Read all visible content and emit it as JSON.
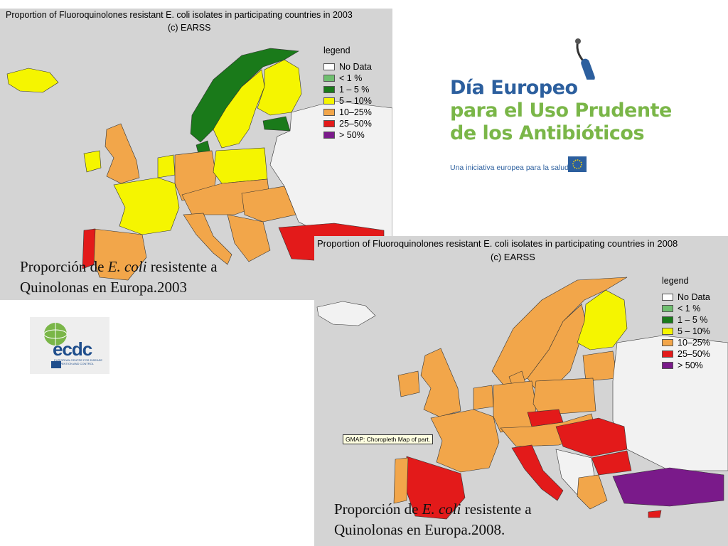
{
  "colors": {
    "no_data": "#e6e6e6",
    "lt1": "#6fbf6f",
    "b1_5": "#1a7a1a",
    "b5_10": "#f5f500",
    "b10_25": "#f2a64a",
    "b25_50": "#e31a1a",
    "gt50": "#7a1a8a",
    "sea": "#d4d4d4",
    "land_nodata": "#f2f2f2"
  },
  "map_2003": {
    "title": "Proportion of Fluoroquinolones resistant E. coli isolates in participating countries in 2003",
    "subtitle": "(c) EARSS",
    "caption_line1_prefix": "Proporción de ",
    "caption_line1_italic": "E. coli",
    "caption_line1_suffix": " resistente a",
    "caption_line2": "Quinolonas en Europa.2003"
  },
  "map_2008": {
    "title": "Proportion of Fluoroquinolones resistant E. coli isolates in participating countries in 2008",
    "subtitle": "(c) EARSS",
    "caption_line1_prefix": "Proporción de ",
    "caption_line1_italic": "E. coli",
    "caption_line1_suffix": " resistente a",
    "caption_line2": "Quinolonas en Europa.2008.",
    "tooltip": "GMAP: Choropleth Map of part."
  },
  "legend": {
    "title": "legend",
    "items": [
      {
        "label": "No Data",
        "color": "#ffffff"
      },
      {
        "label": "< 1 %",
        "color": "#6fbf6f"
      },
      {
        "label": "1 – 5 %",
        "color": "#1a7a1a"
      },
      {
        "label": "5 – 10%",
        "color": "#f5f500"
      },
      {
        "label": "10–25%",
        "color": "#f2a64a"
      },
      {
        "label": "25–50%",
        "color": "#e31a1a"
      },
      {
        "label": "> 50%",
        "color": "#7a1a8a"
      }
    ]
  },
  "campaign_logo": {
    "line1": "Día Europeo",
    "line2": "para el Uso Prudente",
    "line3": "de los Antibióticos",
    "tagline": "Una iniciativa europea para la salud"
  },
  "ecdc_logo": {
    "text": "ecdc",
    "subtitle": "EUROPEAN CENTRE FOR DISEASE PREVENTION AND CONTROL"
  }
}
